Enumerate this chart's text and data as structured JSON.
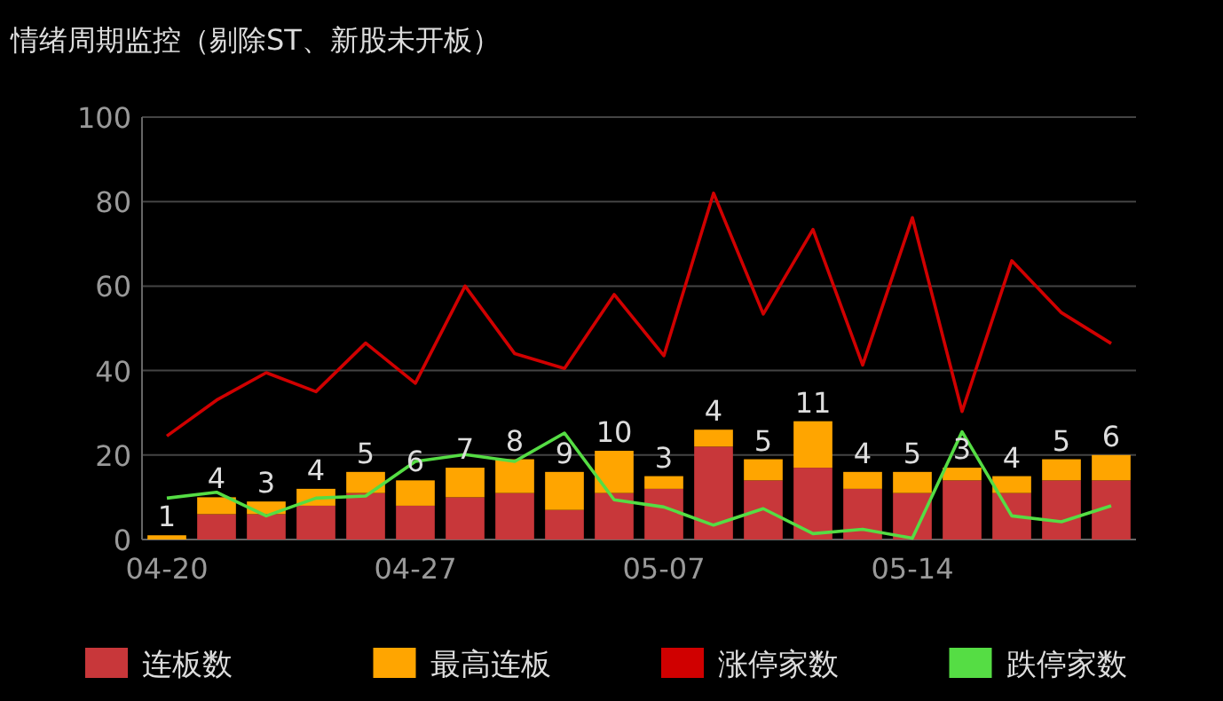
{
  "chart_data": {
    "type": "bar",
    "title": "情绪周期监控（剔除ST、新股未开板）",
    "stacked": true,
    "categories": [
      "04-20",
      null,
      null,
      null,
      null,
      "04-27",
      null,
      null,
      null,
      null,
      "05-07",
      null,
      null,
      null,
      null,
      "05-14",
      null,
      null,
      null,
      null
    ],
    "series": [
      {
        "name": "连板数",
        "color": "#c8373a",
        "values": [
          0,
          6,
          6,
          8,
          11,
          8,
          10,
          11,
          7,
          11,
          12,
          22,
          14,
          17,
          12,
          11,
          14,
          11,
          14,
          14
        ]
      },
      {
        "name": "最高连板",
        "color": "#ffa500",
        "values": [
          1,
          4,
          3,
          4,
          5,
          6,
          7,
          8,
          9,
          10,
          3,
          4,
          5,
          11,
          4,
          5,
          3,
          4,
          5,
          6
        ],
        "value_labels": [
          "1",
          "4",
          "3",
          "4",
          "5",
          "6",
          "7",
          "8",
          "9",
          "10",
          "3",
          "4",
          "5",
          "11",
          "4",
          "5",
          "3",
          "4",
          "5",
          "6"
        ]
      },
      {
        "name": "涨停家数",
        "type": "line",
        "color": "#d00000",
        "values": [
          24.5,
          33,
          39.5,
          35,
          46.5,
          37,
          60,
          44,
          40.5,
          58,
          43.5,
          82,
          53.4,
          73.4,
          41.3,
          76.2,
          30.3,
          66,
          53.7,
          46.4
        ]
      },
      {
        "name": "跌停家数",
        "type": "line",
        "color": "#55dd44",
        "values": [
          9.8,
          11.2,
          5.6,
          9.8,
          10.3,
          18.5,
          20.1,
          18.5,
          25.2,
          9.4,
          7.7,
          3.4,
          7.3,
          1.4,
          2.4,
          0.3,
          25.5,
          5.6,
          4.2,
          8
        ]
      }
    ],
    "ylim": [
      0,
      100
    ],
    "yticks": [
      0,
      20,
      40,
      60,
      80,
      100
    ],
    "grid": "y",
    "legend": "bottom"
  }
}
